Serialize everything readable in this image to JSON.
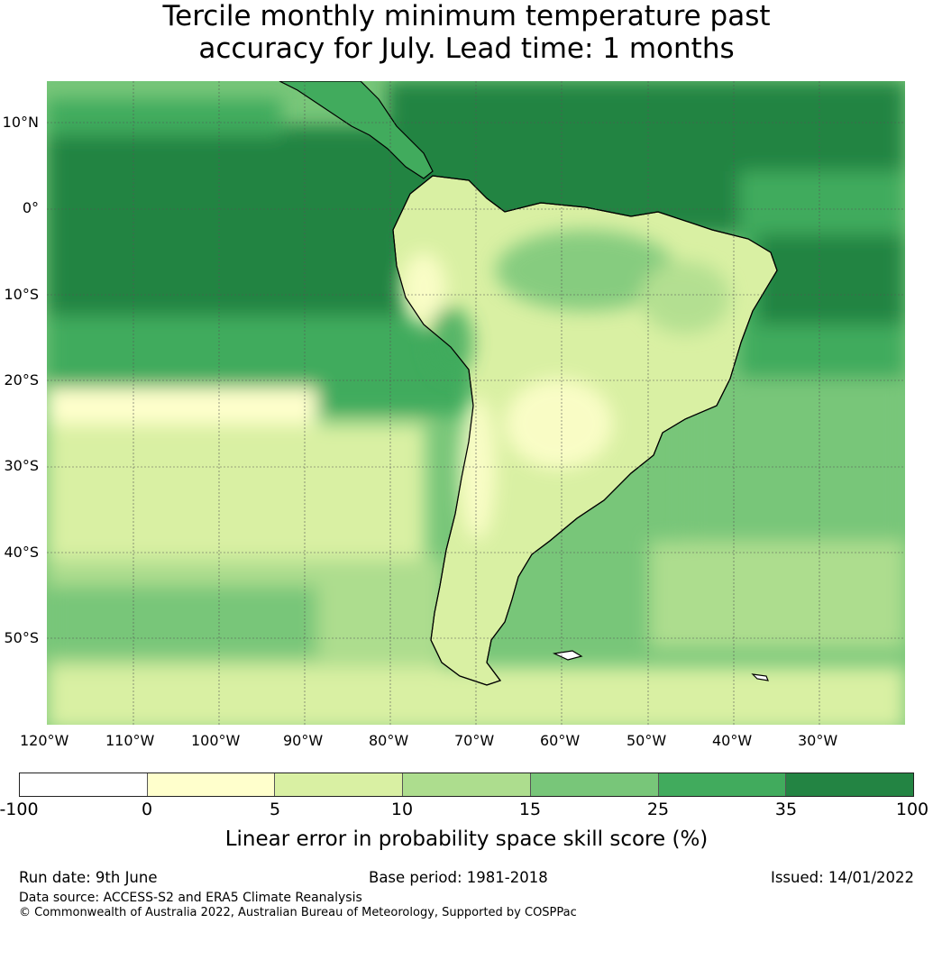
{
  "title": {
    "line1": "Tercile monthly minimum temperature past",
    "line2": "accuracy for July. Lead time: 1 months"
  },
  "map": {
    "lat_labels": [
      "10°N",
      "0°",
      "10°S",
      "20°S",
      "30°S",
      "40°S",
      "50°S"
    ],
    "lon_labels": [
      "120°W",
      "110°W",
      "100°W",
      "90°W",
      "80°W",
      "70°W",
      "60°W",
      "50°W",
      "40°W",
      "30°W"
    ],
    "region": "South America",
    "land_outline_color": "#000000",
    "gridline_color": "#555555"
  },
  "colorbar": {
    "ticks": [
      "-100",
      "0",
      "5",
      "10",
      "15",
      "25",
      "35",
      "100"
    ],
    "colors": [
      "#ffffff",
      "#ffffcc",
      "#d9f0a3",
      "#addd8e",
      "#78c679",
      "#41ab5d",
      "#238443"
    ],
    "label": "Linear error in probability space skill score (%)"
  },
  "footer": {
    "run_date": "Run date: 9th June",
    "base_period": "Base period: 1981-2018",
    "issued": "Issued: 14/01/2022",
    "data_source": "Data source: ACCESS-S2 and ERA5 Climate Reanalysis",
    "copyright": "© Commonwealth of Australia 2022, Australian Bureau of Meteorology, Supported by COSPPac"
  }
}
